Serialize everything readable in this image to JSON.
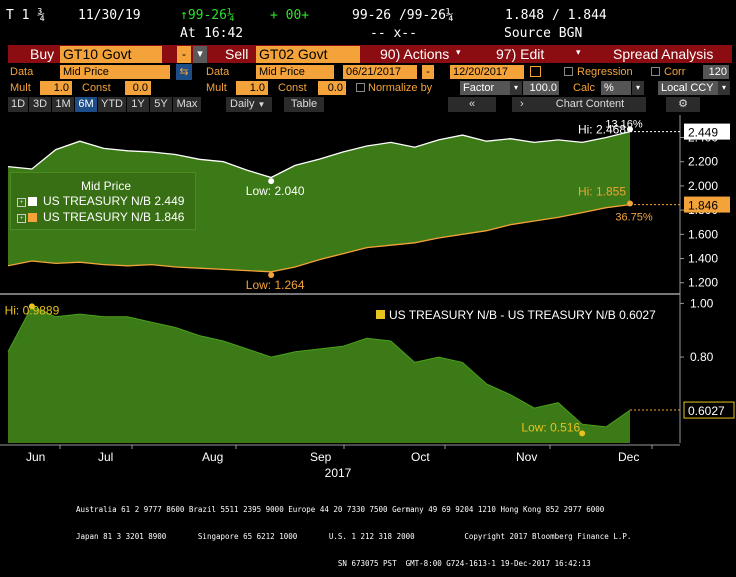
{
  "header": {
    "security_code": "T 1 ¾",
    "date": "11/30/19",
    "price_change": "↑99-26¼",
    "change_value": "+ 00+",
    "bid_ask": "99-26 /99-26¼",
    "yields": "1.848 / 1.844",
    "time_label": "At",
    "time": "16:42",
    "size": "-- x--",
    "source": "Source BGN"
  },
  "toolbar": {
    "buy_label": "Buy",
    "buy_ticker": "GT10 Govt",
    "sell_label": "Sell",
    "sell_ticker": "GT02 Govt",
    "actions_label": "90) Actions",
    "edit_label": "97) Edit",
    "spread_label": "Spread Analysis"
  },
  "params": {
    "data_label": "Data",
    "data_value": "Mid Price",
    "data2_label": "Data",
    "data2_value": "Mid Price",
    "start_date": "06/21/2017",
    "end_date": "12/20/2017",
    "regression_label": "Regression",
    "corr_label": "Corr",
    "corr_value": "120",
    "mult_label": "Mult",
    "mult_value": "1.0",
    "const_label": "Const",
    "const_value": "0.0",
    "mult2_label": "Mult",
    "mult2_value": "1.0",
    "const2_label": "Const",
    "const2_value": "0.0",
    "normalize_label": "Normalize by",
    "factor_value": "Factor",
    "factor_amount": "100.0",
    "calc_label": "Calc",
    "calc_value": "%",
    "ccy_value": "Local CCY"
  },
  "periods": {
    "items": [
      "1D",
      "3D",
      "1M",
      "6M",
      "YTD",
      "1Y",
      "5Y",
      "Max"
    ],
    "active": "6M",
    "frequency": "Daily",
    "table_label": "Table",
    "chart_content_label": "Chart Content"
  },
  "colors": {
    "up_green": "#3a7d1a",
    "orange": "#f3a33a",
    "red": "#8b0d12",
    "panel_green": "#2f6e12"
  },
  "chart_data": [
    {
      "type": "line",
      "legend_title": "Mid Price",
      "x": [
        "2017-06-21",
        "2017-06-26",
        "2017-07-03",
        "2017-07-10",
        "2017-07-17",
        "2017-07-24",
        "2017-07-31",
        "2017-08-07",
        "2017-08-14",
        "2017-08-21",
        "2017-08-28",
        "2017-09-04",
        "2017-09-11",
        "2017-09-18",
        "2017-09-25",
        "2017-10-02",
        "2017-10-09",
        "2017-10-16",
        "2017-10-23",
        "2017-10-30",
        "2017-11-06",
        "2017-11-13",
        "2017-11-20",
        "2017-11-27",
        "2017-12-04",
        "2017-12-11",
        "2017-12-19"
      ],
      "series": [
        {
          "name": "US TREASURY N/B",
          "last": "2.449",
          "values": [
            2.16,
            2.14,
            2.3,
            2.37,
            2.31,
            2.29,
            2.28,
            2.26,
            2.22,
            2.2,
            2.13,
            2.07,
            2.17,
            2.22,
            2.28,
            2.33,
            2.36,
            2.32,
            2.38,
            2.42,
            2.37,
            2.39,
            2.36,
            2.38,
            2.36,
            2.4,
            2.449
          ]
        },
        {
          "name": "US TREASURY N/B",
          "last": "1.846",
          "values": [
            1.34,
            1.38,
            1.36,
            1.37,
            1.35,
            1.34,
            1.35,
            1.33,
            1.32,
            1.31,
            1.3,
            1.29,
            1.33,
            1.39,
            1.44,
            1.49,
            1.51,
            1.53,
            1.57,
            1.6,
            1.63,
            1.68,
            1.71,
            1.74,
            1.78,
            1.82,
            1.846
          ]
        }
      ],
      "annotations": {
        "hi_top": "Hi: 2.468",
        "low_top": "Low: 2.040",
        "hi_bottom": "Hi: 1.855",
        "low_bottom": "Low: 1.264",
        "pct_top": "13.16%",
        "pct_bottom": "36.75%"
      },
      "y_ticks": [
        "2.400",
        "2.200",
        "2.000",
        "1.800",
        "1.600",
        "1.400",
        "1.200"
      ],
      "ylim": [
        1.14,
        2.52
      ]
    },
    {
      "type": "area",
      "x": [
        "2017-06-21",
        "2017-06-26",
        "2017-07-03",
        "2017-07-10",
        "2017-07-17",
        "2017-07-24",
        "2017-07-31",
        "2017-08-07",
        "2017-08-14",
        "2017-08-21",
        "2017-08-28",
        "2017-09-04",
        "2017-09-11",
        "2017-09-18",
        "2017-09-25",
        "2017-10-02",
        "2017-10-09",
        "2017-10-16",
        "2017-10-23",
        "2017-10-30",
        "2017-11-06",
        "2017-11-13",
        "2017-11-20",
        "2017-11-27",
        "2017-12-04",
        "2017-12-11",
        "2017-12-19"
      ],
      "series": [
        {
          "name": "US TREASURY N/B - US TREASURY N/B",
          "last": "0.6027",
          "values": [
            0.82,
            0.9889,
            0.95,
            0.96,
            0.95,
            0.95,
            0.93,
            0.91,
            0.88,
            0.86,
            0.83,
            0.8,
            0.82,
            0.83,
            0.84,
            0.87,
            0.86,
            0.78,
            0.8,
            0.78,
            0.7,
            0.66,
            0.61,
            0.63,
            0.55,
            0.54,
            0.6027
          ]
        }
      ],
      "annotations": {
        "hi": "Hi: 0.9889",
        "low": "Low: 0.516"
      },
      "y_ticks": [
        "1.00",
        "0.80",
        "0.6027"
      ],
      "ylim": [
        0.48,
        1.02
      ]
    }
  ],
  "x_axis": {
    "months": [
      "Jun",
      "Jul",
      "Aug",
      "Sep",
      "Oct",
      "Nov",
      "Dec"
    ],
    "year": "2017"
  },
  "footer": {
    "line1": "Australia 61 2 9777 8600 Brazil 5511 2395 9000 Europe 44 20 7330 7500 Germany 49 69 9204 1210 Hong Kong 852 2977 6000",
    "line2": "Japan 81 3 3201 8900       Singapore 65 6212 1000       U.S. 1 212 318 2000           Copyright 2017 Bloomberg Finance L.P.",
    "line3": "                                                          SN 673075 PST  GMT-8:00 G724-1613-1 19-Dec-2017 16:42:13"
  }
}
